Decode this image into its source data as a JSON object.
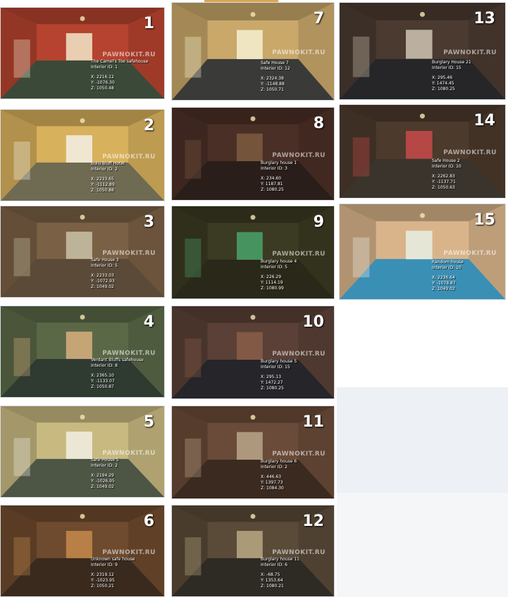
{
  "watermark": "PAWNOKIT.RU",
  "tiles": [
    {
      "num": "1",
      "name": "The Camel's Toe safehouse",
      "id": "Interior ID: 1",
      "x": "X: 2216.12",
      "y": "Y: -1076.30",
      "z": "Z: 1050.48",
      "wall": "#b5432f",
      "floor": "#3b4a38",
      "accent": "#f2e6c8"
    },
    {
      "num": "2",
      "name": "Bulls Bluff Hotel",
      "id": "Interior ID: 2",
      "x": "X: 2233.65",
      "y": "Y: -1112.89",
      "z": "Z: 1050.88",
      "wall": "#d8b15c",
      "floor": "#6f6a52",
      "accent": "#f4f1e8"
    },
    {
      "num": "3",
      "name": "Safe House 3",
      "id": "Interior ID: 5",
      "x": "X: 2233.03",
      "y": "Y: -1072.93",
      "z": "Z: 1049.02",
      "wall": "#7a6044",
      "floor": "#5b4a37",
      "accent": "#c9c2a8"
    },
    {
      "num": "4",
      "name": "Verdant Bluffs safehouse",
      "id": "Interior ID: 8",
      "x": "X: 2365.10",
      "y": "Y: -1133.07",
      "z": "Z: 1050.87",
      "wall": "#5b6847",
      "floor": "#2f3a30",
      "accent": "#d8b07f"
    },
    {
      "num": "5",
      "name": "Safe House 5",
      "id": "Interior ID: 2",
      "x": "X: 2194.29",
      "y": "Y: -1026.95",
      "z": "Z: 1049.02",
      "wall": "#c8b980",
      "floor": "#4d5545",
      "accent": "#f2efe4"
    },
    {
      "num": "6",
      "name": "Unknown safe house",
      "id": "Interior ID: 9",
      "x": "X: 2319.12",
      "y": "Y: -1023.95",
      "z": "Z: 1050.21",
      "wall": "#6e4a2e",
      "floor": "#3a2a1e",
      "accent": "#c58a4a"
    },
    {
      "num": "7",
      "name": "Safe House 7",
      "id": "Interior ID: 12",
      "x": "X: 2324.38",
      "y": "Y: -1148.88",
      "z": "Z: 1050.71",
      "wall": "#c9a86a",
      "floor": "#3a3a38",
      "accent": "#f6f0cf"
    },
    {
      "num": "8",
      "name": "Burglary house 1",
      "id": "Interior ID: 3",
      "x": "X: 234.60",
      "y": "Y: 1187.81",
      "z": "Z: 1080.25",
      "wall": "#4a2f26",
      "floor": "#2a1e1a",
      "accent": "#7b5a40"
    },
    {
      "num": "9",
      "name": "Burglary house 4",
      "id": "Interior ID: 5",
      "x": "X: 226.29",
      "y": "Y: 1114.19",
      "z": "Z: 1080.99",
      "wall": "#3b3a22",
      "floor": "#2a2818",
      "accent": "#4aa36a"
    },
    {
      "num": "10",
      "name": "Burglary house 5",
      "id": "Interior ID: 15",
      "x": "X: 295.13",
      "y": "Y: 1472.27",
      "z": "Z: 1080.25",
      "wall": "#5a4036",
      "floor": "#25252a",
      "accent": "#8a5e48"
    },
    {
      "num": "11",
      "name": "Burglary house 6",
      "id": "Interior ID: 2",
      "x": "X: 446.63",
      "y": "Y: 1397.73",
      "z": "Z: 1084.30",
      "wall": "#6a4a38",
      "floor": "#3a2a20",
      "accent": "#b9a58a"
    },
    {
      "num": "12",
      "name": "Burglary house 11",
      "id": "Interior ID: 6",
      "x": "X: -68.75",
      "y": "Y: 1353.64",
      "z": "Z: 1080.21",
      "wall": "#5a4a38",
      "floor": "#2e2a24",
      "accent": "#b9a883"
    },
    {
      "num": "13",
      "name": "Burglary House 21",
      "id": "Interior ID: 15",
      "x": "X: 295.46",
      "y": "Y: 1474.45",
      "z": "Z: 1080.25",
      "wall": "#4a3a30",
      "floor": "#262628",
      "accent": "#cfc6b4"
    },
    {
      "num": "14",
      "name": "Safe House 2",
      "id": "Interior ID: 10",
      "x": "X: 2262.83",
      "y": "Y: -1137.71",
      "z": "Z: 1050.63",
      "wall": "#4c3a2c",
      "floor": "#3a342c",
      "accent": "#c84a4a"
    },
    {
      "num": "15",
      "name": "Random house",
      "id": "Interior ID: 10",
      "x": "X: 2236.64",
      "y": "Y: -1078.87",
      "z": "Z: 1049.02",
      "wall": "#d9b48a",
      "floor": "#3a8fb5",
      "accent": "#e8efe4"
    }
  ]
}
